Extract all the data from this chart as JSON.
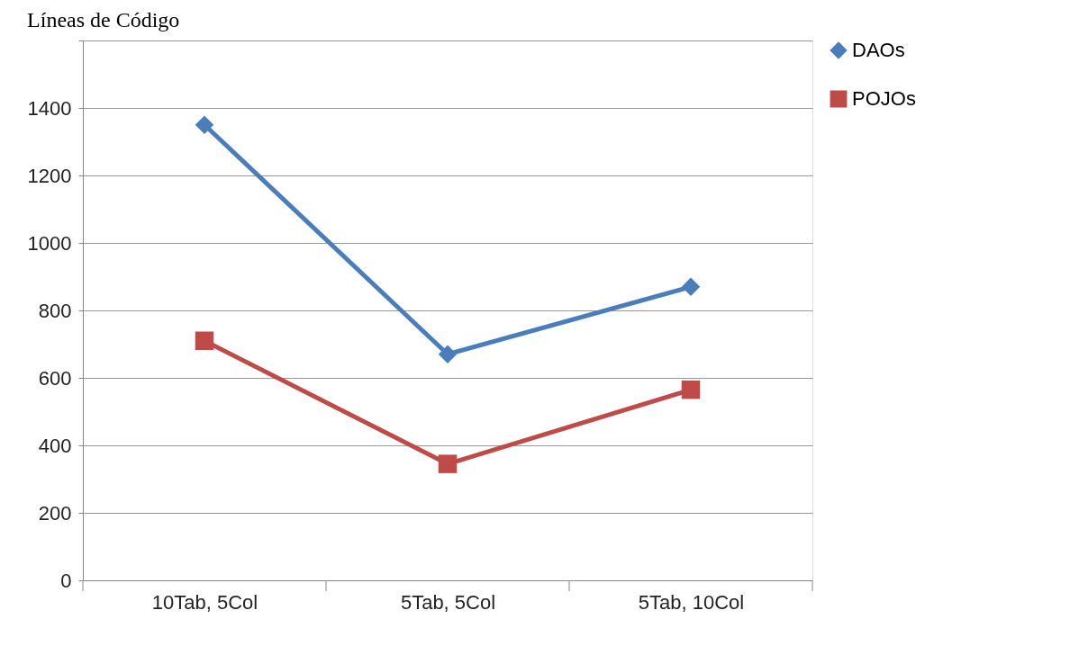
{
  "chart_data": {
    "type": "line",
    "title": "Líneas de Código",
    "categories": [
      "10Tab, 5Col",
      "5Tab, 5Col",
      "5Tab, 10Col"
    ],
    "series": [
      {
        "name": "DAOs",
        "color": "#4a7ebb",
        "marker": "diamond",
        "values": [
          1350,
          670,
          870
        ]
      },
      {
        "name": "POJOs",
        "color": "#be4b48",
        "marker": "square",
        "values": [
          710,
          345,
          565
        ]
      }
    ],
    "ylim": [
      0,
      1600
    ],
    "yticks": [
      0,
      200,
      400,
      600,
      800,
      1000,
      1200,
      1400,
      {
        "value": 1600,
        "label": null
      }
    ],
    "grid": "y",
    "legend": "right",
    "line_style": "solid"
  }
}
